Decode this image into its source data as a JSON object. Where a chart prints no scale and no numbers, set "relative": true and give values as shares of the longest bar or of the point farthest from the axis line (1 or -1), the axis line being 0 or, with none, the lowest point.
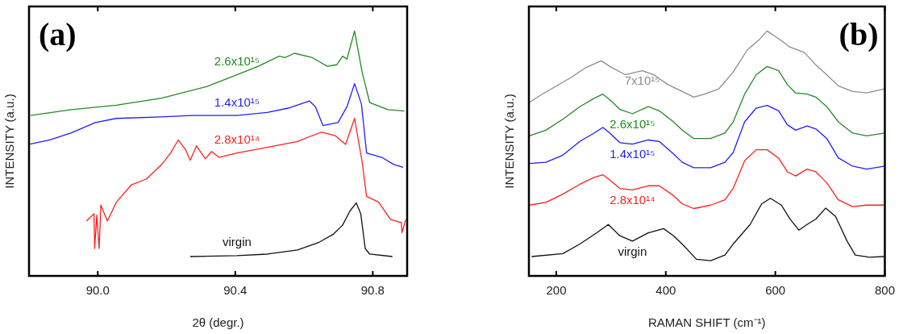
{
  "chart_data": [
    {
      "type": "line",
      "xlabel": "2θ (degr.)",
      "ylabel": "INTENSITY (a.u.)",
      "relative": true,
      "tick_labels": "x",
      "grid": false,
      "legend": false,
      "marker": "none",
      "annotations": [
        "(a)"
      ],
      "xlim": [
        89.8,
        90.9
      ],
      "xticks": [
        {
          "value": 90.0,
          "label": "90.0"
        },
        {
          "value": 90.4,
          "label": "90.4"
        },
        {
          "value": 90.8,
          "label": "90.8"
        }
      ],
      "series": [
        {
          "name": "2.6x10¹⁵",
          "color": "#218a21",
          "x": [
            89.804,
            89.923,
            90.054,
            90.186,
            90.317,
            90.405,
            90.467,
            90.528,
            90.545,
            90.572,
            90.624,
            90.668,
            90.695,
            90.712,
            90.725,
            90.747,
            90.769,
            90.791,
            90.844,
            90.892
          ],
          "values": [
            0.655,
            0.679,
            0.697,
            0.726,
            0.773,
            0.821,
            0.856,
            0.897,
            0.891,
            0.909,
            0.891,
            0.856,
            0.862,
            0.897,
            0.885,
            1.0,
            0.832,
            0.708,
            0.679,
            0.673
          ]
        },
        {
          "name": "1.4x10¹⁵",
          "color": "#1f1fff",
          "x": [
            89.8,
            89.861,
            89.923,
            89.993,
            90.054,
            90.186,
            90.274,
            90.405,
            90.493,
            90.554,
            90.616,
            90.633,
            90.655,
            90.699,
            90.725,
            90.747,
            90.767,
            90.782,
            90.826,
            90.861,
            90.888
          ],
          "values": [
            0.537,
            0.555,
            0.584,
            0.626,
            0.643,
            0.649,
            0.655,
            0.655,
            0.667,
            0.685,
            0.714,
            0.691,
            0.614,
            0.626,
            0.691,
            0.785,
            0.702,
            0.502,
            0.484,
            0.455,
            0.443
          ]
        },
        {
          "name": "2.8x10¹⁴",
          "color": "#ff1f1f",
          "x": [
            89.967,
            89.989,
            89.991,
            89.997,
            90.004,
            90.009,
            90.028,
            90.054,
            90.098,
            90.142,
            90.186,
            90.212,
            90.234,
            90.256,
            90.269,
            90.287,
            90.313,
            90.331,
            90.353,
            90.405,
            90.493,
            90.581,
            90.624,
            90.651,
            90.69,
            90.721,
            90.747,
            90.769,
            90.782,
            90.817,
            90.852,
            90.883,
            90.885,
            90.896
          ],
          "values": [
            0.224,
            0.254,
            0.112,
            0.248,
            0.112,
            0.289,
            0.224,
            0.301,
            0.372,
            0.396,
            0.455,
            0.502,
            0.555,
            0.514,
            0.472,
            0.531,
            0.478,
            0.508,
            0.484,
            0.502,
            0.525,
            0.549,
            0.573,
            0.587,
            0.573,
            0.537,
            0.643,
            0.466,
            0.325,
            0.301,
            0.23,
            0.218,
            0.177,
            0.23
          ]
        },
        {
          "name": "virgin",
          "color": "#111111",
          "x": [
            90.269,
            90.405,
            90.493,
            90.581,
            90.642,
            90.686,
            90.712,
            90.734,
            90.752,
            90.765,
            90.778,
            90.791,
            90.857
          ],
          "values": [
            0.079,
            0.083,
            0.089,
            0.106,
            0.136,
            0.171,
            0.207,
            0.266,
            0.298,
            0.254,
            0.112,
            0.089,
            0.079
          ]
        }
      ]
    },
    {
      "type": "line",
      "xlabel": "RAMAN SHIFT (cm⁻¹)",
      "ylabel": "INTENSITY (a.u.)",
      "relative": true,
      "tick_labels": "x",
      "grid": false,
      "legend": false,
      "marker": "none",
      "annotations": [
        "(b)"
      ],
      "xlim": [
        150,
        800
      ],
      "xticks": [
        200,
        400,
        600,
        800
      ],
      "series": [
        {
          "name": "7x10¹⁵",
          "color": "#8c8c8c",
          "x": [
            151,
            170,
            196,
            227,
            253,
            282,
            298,
            326,
            357,
            378,
            404,
            430,
            451,
            471,
            497,
            523,
            549,
            570,
            585,
            606,
            627,
            653,
            674,
            694,
            715,
            741,
            767,
            800
          ],
          "values": [
            0.708,
            0.736,
            0.77,
            0.81,
            0.849,
            0.878,
            0.855,
            0.821,
            0.838,
            0.821,
            0.781,
            0.753,
            0.73,
            0.742,
            0.764,
            0.832,
            0.923,
            0.963,
            1.0,
            0.968,
            0.934,
            0.912,
            0.861,
            0.821,
            0.776,
            0.753,
            0.747,
            0.764
          ]
        },
        {
          "name": "2.6x10¹⁵",
          "color": "#218a21",
          "x": [
            151,
            181,
            212,
            243,
            269,
            285,
            298,
            316,
            339,
            368,
            388,
            414,
            430,
            451,
            482,
            508,
            523,
            544,
            565,
            585,
            606,
            622,
            637,
            658,
            674,
            694,
            715,
            741,
            767,
            800
          ],
          "values": [
            0.572,
            0.595,
            0.64,
            0.691,
            0.725,
            0.742,
            0.719,
            0.68,
            0.662,
            0.691,
            0.674,
            0.629,
            0.595,
            0.561,
            0.561,
            0.583,
            0.629,
            0.742,
            0.821,
            0.855,
            0.838,
            0.781,
            0.747,
            0.742,
            0.73,
            0.691,
            0.629,
            0.583,
            0.572,
            0.583
          ]
        },
        {
          "name": "1.4x10¹⁵",
          "color": "#1f1fff",
          "x": [
            151,
            181,
            212,
            243,
            269,
            285,
            298,
            316,
            339,
            368,
            388,
            414,
            430,
            451,
            482,
            508,
            523,
            544,
            565,
            585,
            606,
            622,
            637,
            658,
            674,
            694,
            715,
            741,
            767,
            800
          ],
          "values": [
            0.459,
            0.464,
            0.493,
            0.549,
            0.583,
            0.606,
            0.583,
            0.544,
            0.538,
            0.555,
            0.549,
            0.498,
            0.464,
            0.442,
            0.442,
            0.464,
            0.504,
            0.629,
            0.685,
            0.696,
            0.674,
            0.617,
            0.595,
            0.612,
            0.6,
            0.561,
            0.482,
            0.448,
            0.436,
            0.448
          ]
        },
        {
          "name": "2.8x10¹⁴",
          "color": "#ff1f1f",
          "x": [
            151,
            181,
            212,
            243,
            269,
            285,
            298,
            316,
            339,
            368,
            388,
            414,
            430,
            451,
            482,
            508,
            523,
            544,
            565,
            585,
            606,
            622,
            637,
            658,
            674,
            694,
            715,
            741,
            767,
            800
          ],
          "values": [
            0.289,
            0.3,
            0.334,
            0.374,
            0.402,
            0.413,
            0.391,
            0.357,
            0.351,
            0.368,
            0.368,
            0.328,
            0.294,
            0.275,
            0.289,
            0.311,
            0.357,
            0.47,
            0.515,
            0.515,
            0.481,
            0.425,
            0.408,
            0.436,
            0.425,
            0.38,
            0.311,
            0.283,
            0.289,
            0.289
          ]
        },
        {
          "name": "virgin",
          "color": "#111111",
          "x": [
            155,
            212,
            243,
            274,
            295,
            316,
            339,
            368,
            396,
            414,
            430,
            456,
            482,
            508,
            523,
            554,
            575,
            591,
            611,
            627,
            643,
            658,
            674,
            692,
            710,
            731,
            746,
            772,
            798
          ],
          "values": [
            0.079,
            0.091,
            0.13,
            0.176,
            0.21,
            0.164,
            0.142,
            0.176,
            0.193,
            0.164,
            0.13,
            0.068,
            0.062,
            0.085,
            0.13,
            0.21,
            0.294,
            0.317,
            0.289,
            0.232,
            0.187,
            0.21,
            0.232,
            0.277,
            0.243,
            0.142,
            0.085,
            0.076,
            0.079
          ]
        }
      ]
    }
  ]
}
